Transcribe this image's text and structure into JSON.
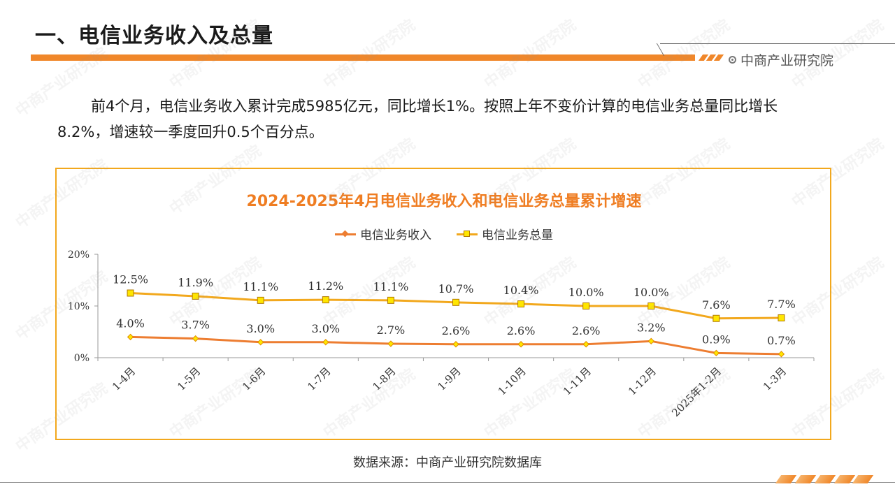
{
  "header": {
    "title": "一、电信业务收入及总量",
    "brand": "中商产业研究院"
  },
  "paragraph": "前4个月，电信业务收入累计完成5985亿元，同比增长1%。按照上年不变价计算的电信业务总量同比增长8.2%，增速较一季度回升0.5个百分点。",
  "source": "数据来源：中商产业研究院数据库",
  "watermark": "中商产业研究院",
  "colors": {
    "accent": "#f0872a",
    "series_revenue": "#ed7d31",
    "series_volume": "#f2a81d",
    "title": "#ef7d22"
  },
  "chart_data": {
    "type": "line",
    "title": "2024-2025年4月电信业务收入和电信业务总量累计增速",
    "categories": [
      "1-4月",
      "1-5月",
      "1-6月",
      "1-7月",
      "1-8月",
      "1-9月",
      "1-10月",
      "1-11月",
      "1-12月",
      "2025年1-2月",
      "1-3月"
    ],
    "series": [
      {
        "name": "电信业务收入",
        "values": [
          4.0,
          3.7,
          3.0,
          3.0,
          2.7,
          2.6,
          2.6,
          2.6,
          3.2,
          0.9,
          0.7
        ],
        "labels": [
          "4.0%",
          "3.7%",
          "3.0%",
          "3.0%",
          "2.7%",
          "2.6%",
          "2.6%",
          "2.6%",
          "3.2%",
          "0.9%",
          "0.7%"
        ],
        "marker": "diamond",
        "color": "#ed7d31"
      },
      {
        "name": "电信业务总量",
        "values": [
          12.5,
          11.9,
          11.1,
          11.2,
          11.1,
          10.7,
          10.4,
          10.0,
          10.0,
          7.6,
          7.7
        ],
        "labels": [
          "12.5%",
          "11.9%",
          "11.1%",
          "11.2%",
          "11.1%",
          "10.7%",
          "10.4%",
          "10.0%",
          "10.0%",
          "7.6%",
          "7.7%"
        ],
        "marker": "square",
        "color": "#f2a81d"
      }
    ],
    "ylim": [
      0,
      20
    ],
    "yticks": [
      "0%",
      "10%",
      "20%"
    ],
    "ytick_values": [
      0,
      10,
      20
    ],
    "legend": "top-center",
    "grid": false
  }
}
